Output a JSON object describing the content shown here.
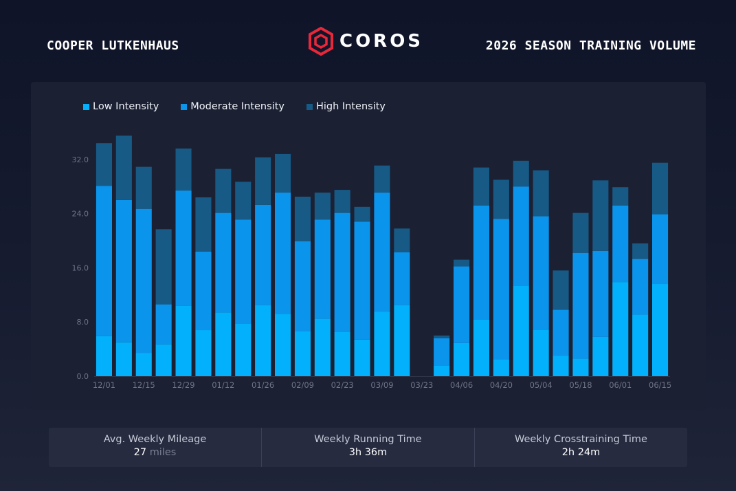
{
  "header": {
    "athlete": "COOPER LUTKENHAUS",
    "brand": "COROS",
    "title": "2026 SEASON TRAINING VOLUME"
  },
  "colors": {
    "low": "#03b0fb",
    "moderate": "#0b94ec",
    "high": "#175a86",
    "brand_red": "#e8283a",
    "panel": "#1b2033"
  },
  "chart_data": {
    "type": "bar",
    "stacked": true,
    "x": [
      "12/01",
      "12/08",
      "12/15",
      "12/22",
      "12/29",
      "01/05",
      "01/12",
      "01/19",
      "01/26",
      "02/02",
      "02/09",
      "02/16",
      "02/23",
      "03/02",
      "03/09",
      "03/16",
      "03/23",
      "03/30",
      "04/06",
      "04/13",
      "04/20",
      "04/27",
      "05/04",
      "05/11",
      "05/18",
      "05/25",
      "06/01",
      "06/08",
      "06/15"
    ],
    "tick_labels": [
      "12/01",
      "12/15",
      "12/29",
      "01/12",
      "01/26",
      "02/09",
      "02/23",
      "03/09",
      "03/23",
      "04/06",
      "04/20",
      "05/04",
      "05/18",
      "06/01",
      "06/15"
    ],
    "yticks": [
      "0.0",
      "8.0",
      "16.0",
      "24.0",
      "32.0"
    ],
    "ylim": [
      0,
      35
    ],
    "series": [
      {
        "name": "Low Intensity",
        "color": "#03b0fb",
        "values": [
          5.9,
          5.0,
          3.4,
          4.7,
          10.4,
          6.8,
          9.4,
          7.8,
          10.5,
          9.2,
          6.6,
          8.5,
          6.5,
          5.4,
          9.5,
          10.5,
          0,
          1.6,
          4.9,
          8.4,
          2.5,
          13.3,
          6.8,
          3.0,
          2.6,
          5.8,
          13.9,
          9.1,
          13.6
        ]
      },
      {
        "name": "Moderate Intensity",
        "color": "#0b94ec",
        "values": [
          22.2,
          21.0,
          21.3,
          5.9,
          17.0,
          11.6,
          14.7,
          15.3,
          14.8,
          17.9,
          13.3,
          14.6,
          17.6,
          17.4,
          17.6,
          7.8,
          0,
          4.0,
          11.3,
          16.8,
          20.7,
          14.7,
          16.8,
          6.8,
          15.6,
          12.7,
          11.3,
          8.2,
          10.3
        ]
      },
      {
        "name": "High Intensity",
        "color": "#175a86",
        "values": [
          6.3,
          9.5,
          6.2,
          11.1,
          6.2,
          8.0,
          6.5,
          5.6,
          7.0,
          5.7,
          6.6,
          4.0,
          3.4,
          2.2,
          4.0,
          3.5,
          0,
          0.4,
          1.0,
          5.6,
          5.8,
          3.8,
          6.8,
          5.8,
          5.9,
          10.4,
          2.7,
          2.3,
          7.6
        ]
      }
    ],
    "legend": "top-left",
    "grid": false
  },
  "stats": [
    {
      "label": "Avg. Weekly Mileage",
      "value": "27",
      "unit": "miles"
    },
    {
      "label": "Weekly Running Time",
      "value": "3h 36m",
      "unit": ""
    },
    {
      "label": "Weekly Crosstraining Time",
      "value": "2h 24m",
      "unit": ""
    }
  ]
}
